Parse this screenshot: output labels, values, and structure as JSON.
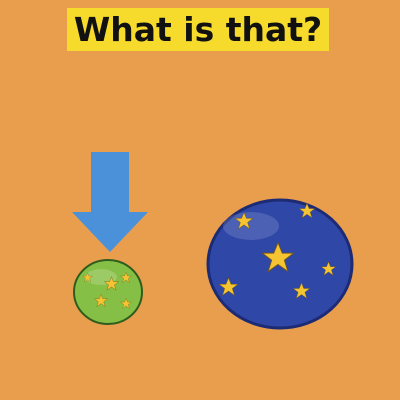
{
  "title": "What is that?",
  "colors": {
    "background": "#E99E4E",
    "title_box": "#F6DB2C",
    "title_text": "#111111",
    "arrow": "#4B91DA",
    "small_ball": "#86BF45",
    "large_ball": "#2F47A7",
    "star": "#F4C432"
  },
  "icons": {
    "arrow": "arrow-down-icon",
    "small_ball": "green-star-ball",
    "large_ball": "blue-star-ball"
  }
}
